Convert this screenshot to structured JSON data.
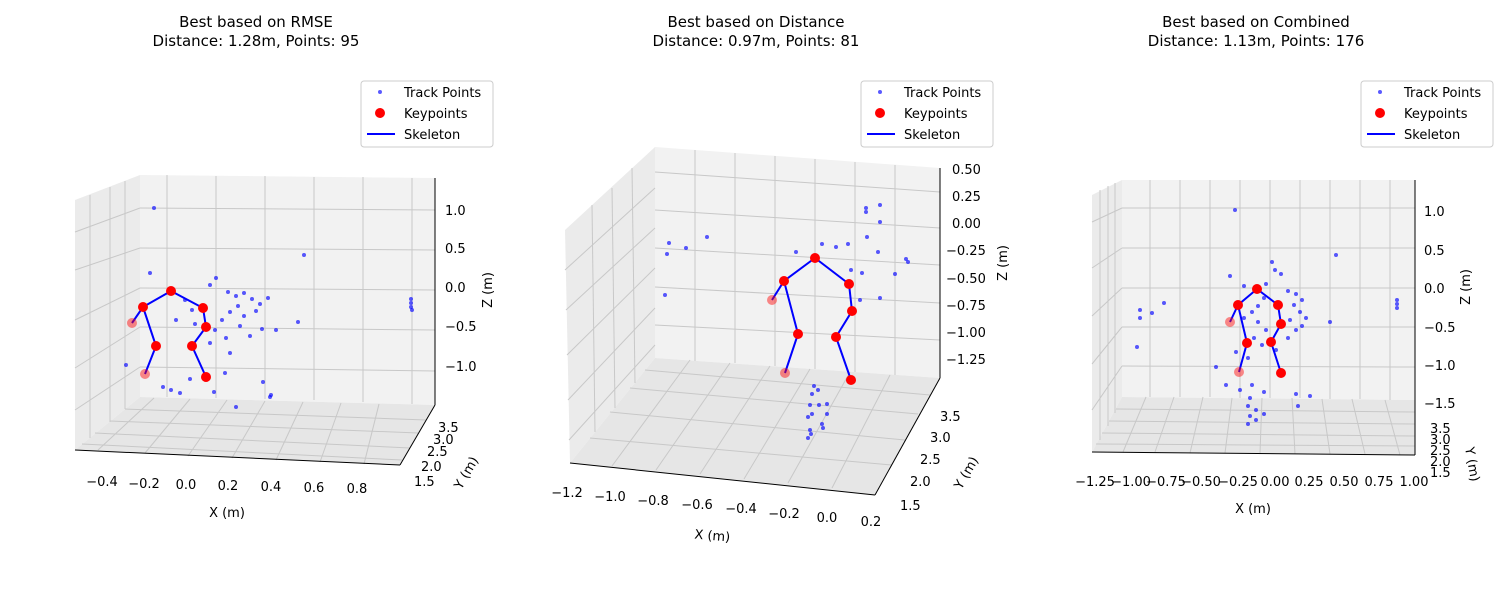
{
  "colors": {
    "track": "#0000ff",
    "keypoint": "#ff0000",
    "skeleton": "#0000ff",
    "pane": "#f2f2f2",
    "grid": "#c8c8c8"
  },
  "chart_data": [
    {
      "type": "scatter",
      "title": "Best based on RMSE",
      "subtitle": "Distance: 1.28m, Points: 95",
      "legend": {
        "placement": "top-right",
        "entries": [
          "Track Points",
          "Keypoints",
          "Skeleton"
        ]
      },
      "xlabel": "X (m)",
      "ylabel": "Y (m)",
      "zlabel": "Z (m)",
      "xticks": [
        "−0.4",
        "−0.2",
        "0.0",
        "0.2",
        "0.4",
        "0.6",
        "0.8"
      ],
      "yticks": [
        "1.5",
        "2.0",
        "2.5",
        "3.0",
        "3.5"
      ],
      "zticks": [
        "1.0",
        "0.5",
        "0.0",
        "−0.5",
        "−1.0"
      ],
      "grid": true
    },
    {
      "type": "scatter",
      "title": "Best based on Distance",
      "subtitle": "Distance: 0.97m, Points: 81",
      "legend": {
        "placement": "top-right",
        "entries": [
          "Track Points",
          "Keypoints",
          "Skeleton"
        ]
      },
      "xlabel": "X (m)",
      "ylabel": "Y (m)",
      "zlabel": "Z (m)",
      "xticks": [
        "−1.2",
        "−1.0",
        "−0.8",
        "−0.6",
        "−0.4",
        "−0.2",
        "0.0",
        "0.2"
      ],
      "yticks": [
        "1.5",
        "2.0",
        "2.5",
        "3.0",
        "3.5"
      ],
      "zticks": [
        "0.50",
        "0.25",
        "0.00",
        "−0.25",
        "−0.50",
        "−0.75",
        "−1.00",
        "−1.25"
      ],
      "grid": true
    },
    {
      "type": "scatter",
      "title": "Best based on Combined",
      "subtitle": "Distance: 1.13m, Points: 176",
      "legend": {
        "placement": "top-right",
        "entries": [
          "Track Points",
          "Keypoints",
          "Skeleton"
        ]
      },
      "xlabel": "X (m)",
      "ylabel": "Y (m)",
      "zlabel": "Z (m)",
      "xticks": [
        "−1.25",
        "−1.00",
        "−0.75",
        "−0.50",
        "−0.25",
        "0.00",
        "0.25",
        "0.50",
        "0.75",
        "1.00"
      ],
      "yticks": [
        "1.5",
        "2.0",
        "2.5",
        "3.0",
        "3.5"
      ],
      "zticks": [
        "1.0",
        "0.5",
        "0.0",
        "−0.5",
        "−1.0",
        "−1.5"
      ],
      "grid": true
    }
  ]
}
